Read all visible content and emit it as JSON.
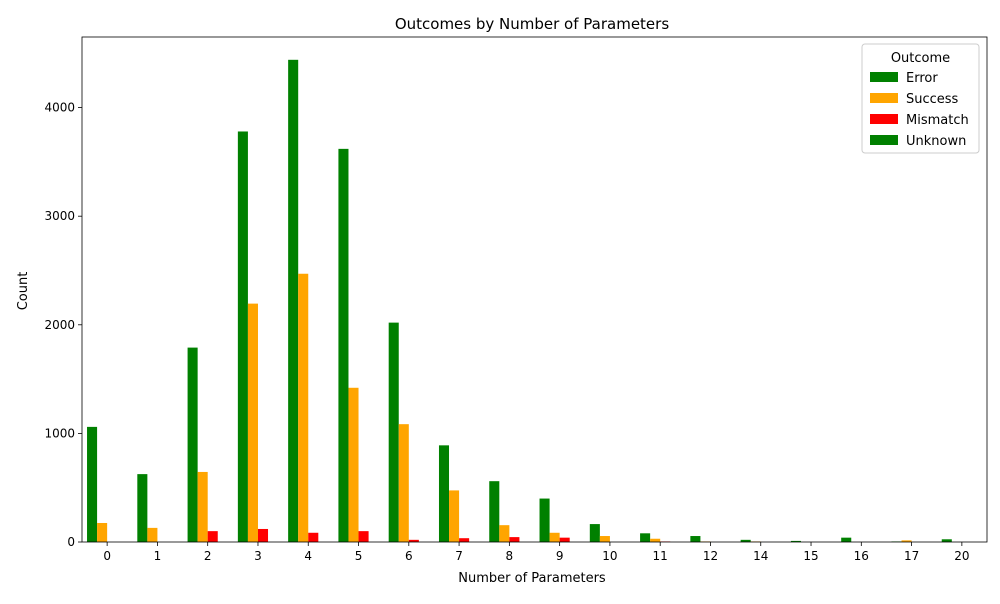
{
  "chart_data": {
    "type": "bar",
    "title": "Outcomes by Number of Parameters",
    "xlabel": "Number of Parameters",
    "ylabel": "Count",
    "categories": [
      "0",
      "1",
      "2",
      "3",
      "4",
      "5",
      "6",
      "7",
      "8",
      "9",
      "10",
      "11",
      "12",
      "14",
      "15",
      "16",
      "17",
      "20"
    ],
    "ylim": [
      0,
      4650
    ],
    "yticks": [
      0,
      1000,
      2000,
      3000,
      4000
    ],
    "grid": false,
    "legend": {
      "title": "Outcome",
      "placement": "top-right"
    },
    "series": [
      {
        "name": "Error",
        "color": "#008000",
        "values": [
          1060,
          625,
          1790,
          3780,
          4440,
          3620,
          2020,
          890,
          560,
          400,
          165,
          80,
          55,
          20,
          10,
          40,
          5,
          25
        ]
      },
      {
        "name": "Success",
        "color": "#ffa500",
        "values": [
          175,
          130,
          645,
          2195,
          2470,
          1420,
          1085,
          475,
          155,
          85,
          55,
          30,
          5,
          5,
          0,
          0,
          15,
          0
        ]
      },
      {
        "name": "Mismatch",
        "color": "#ff0000",
        "values": [
          0,
          0,
          100,
          120,
          85,
          100,
          20,
          35,
          45,
          40,
          0,
          5,
          0,
          0,
          0,
          0,
          0,
          0
        ]
      },
      {
        "name": "Unknown",
        "color": "#008000",
        "values": [
          0,
          0,
          0,
          0,
          0,
          0,
          0,
          0,
          0,
          0,
          0,
          0,
          0,
          0,
          0,
          0,
          0,
          0
        ]
      }
    ]
  }
}
